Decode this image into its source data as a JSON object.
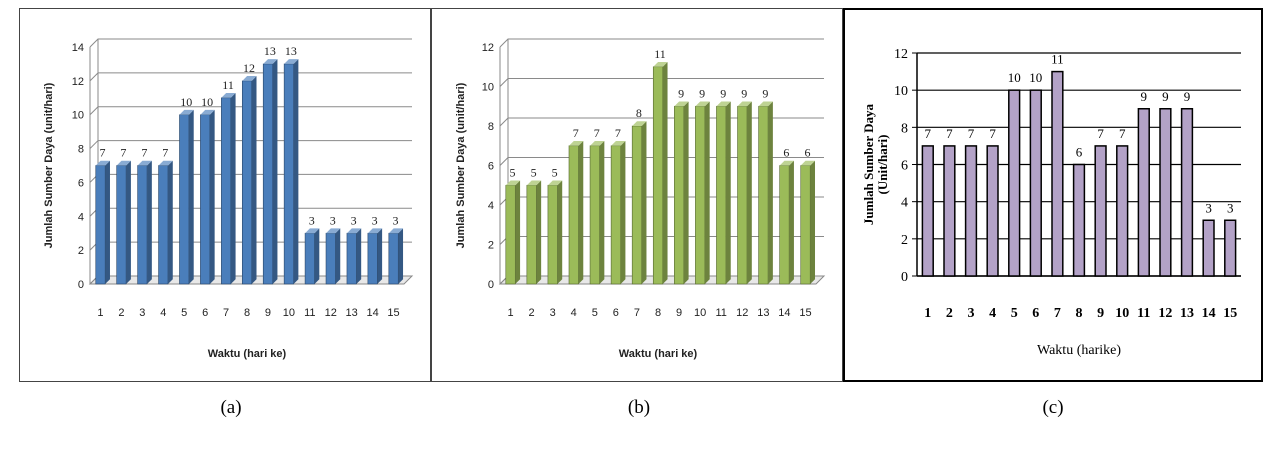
{
  "chart_data": [
    {
      "type": "bar",
      "categories": [
        "1",
        "2",
        "3",
        "4",
        "5",
        "6",
        "7",
        "8",
        "9",
        "10",
        "11",
        "12",
        "13",
        "14",
        "15"
      ],
      "values": [
        7,
        7,
        7,
        7,
        10,
        10,
        11,
        12,
        13,
        13,
        3,
        3,
        3,
        3,
        3
      ],
      "data_labels": [
        "7",
        "7",
        "7",
        "7",
        "10",
        "10",
        "11",
        "12",
        "13",
        "13",
        "3",
        "3",
        "3",
        "3",
        "3"
      ],
      "y_ticks": [
        "0",
        "2",
        "4",
        "6",
        "8",
        "10",
        "12",
        "14"
      ],
      "ylim": [
        0,
        14
      ],
      "xlabel": "Waktu (hari ke)",
      "ylabel": "Jumlah Sumber Daya (unit/hari)",
      "grid": true,
      "color": "#4a7ebb",
      "caption": "(a)"
    },
    {
      "type": "bar",
      "categories": [
        "1",
        "2",
        "3",
        "4",
        "5",
        "6",
        "7",
        "8",
        "9",
        "10",
        "11",
        "12",
        "13",
        "14",
        "15"
      ],
      "values": [
        5,
        5,
        5,
        7,
        7,
        7,
        8,
        11,
        9,
        9,
        9,
        9,
        9,
        6,
        6
      ],
      "data_labels": [
        "5",
        "5",
        "5",
        "7",
        "7",
        "7",
        "8",
        "11",
        "9",
        "9",
        "9",
        "9",
        "9",
        "6",
        "6"
      ],
      "y_ticks": [
        "0",
        "2",
        "4",
        "6",
        "8",
        "10",
        "12"
      ],
      "ylim": [
        0,
        12
      ],
      "xlabel": "Waktu (hari ke)",
      "ylabel": "Jumlah Sumber Daya (unit/hari)",
      "grid": true,
      "color": "#9bbb59",
      "caption": "(b)"
    },
    {
      "type": "bar",
      "categories": [
        "1",
        "2",
        "3",
        "4",
        "5",
        "6",
        "7",
        "8",
        "9",
        "10",
        "11",
        "12",
        "13",
        "14",
        "15"
      ],
      "values": [
        7,
        7,
        7,
        7,
        10,
        10,
        11,
        6,
        7,
        7,
        9,
        9,
        9,
        3,
        3
      ],
      "data_labels": [
        "7",
        "7",
        "7",
        "7",
        "10",
        "10",
        "11",
        "6",
        "7",
        "7",
        "9",
        "9",
        "9",
        "3",
        "3"
      ],
      "y_ticks": [
        "0",
        "2",
        "4",
        "6",
        "8",
        "10",
        "12"
      ],
      "ylim": [
        0,
        12
      ],
      "xlabel": "Waktu (harike)",
      "ylabel": "Jumlah Sumber Daya",
      "ylabel2": "(Unit/hari)",
      "grid": true,
      "color": "#b3a2c7",
      "caption": "(c)"
    }
  ]
}
